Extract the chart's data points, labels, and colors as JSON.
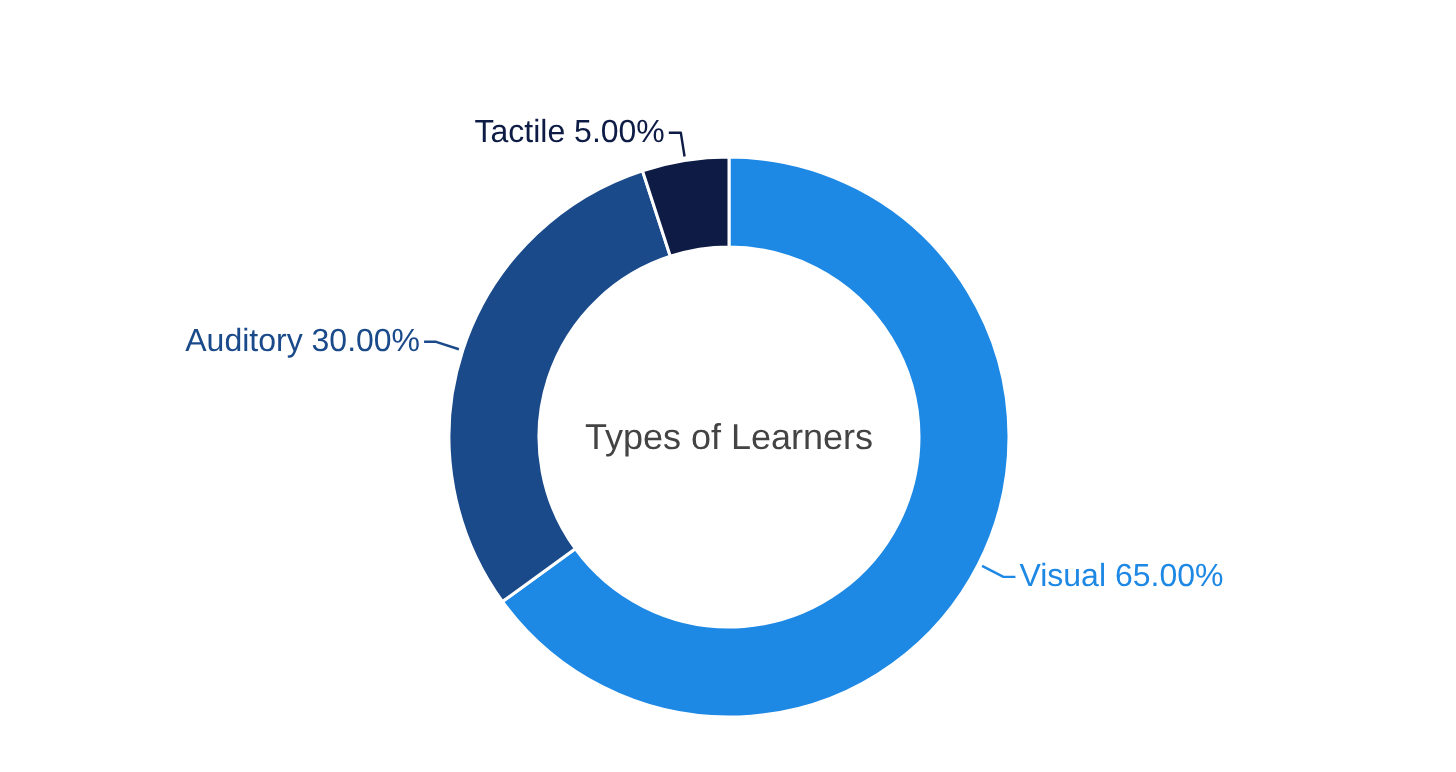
{
  "chart_data": {
    "type": "donut",
    "title": "Types of Learners",
    "categories": [
      "Visual",
      "Auditory",
      "Tactile"
    ],
    "values": [
      65,
      30,
      5
    ],
    "colors": [
      "#1e88e5",
      "#1a4a8a",
      "#0d1b45"
    ],
    "value_labels": [
      "65.00%",
      "30.00%",
      "5.00%"
    ]
  }
}
